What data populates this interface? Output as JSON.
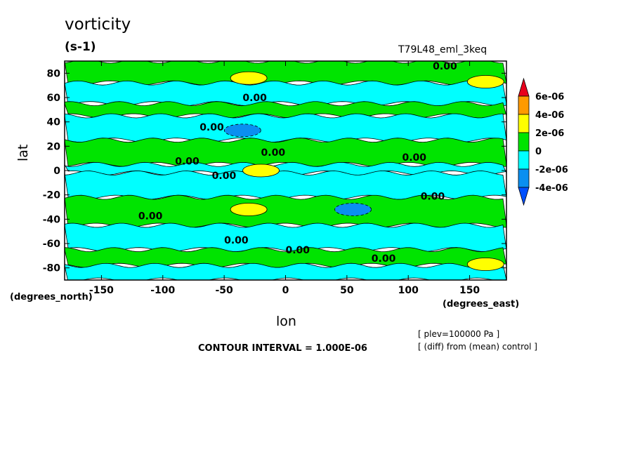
{
  "chart_data": {
    "type": "heatmap",
    "title": "vorticity",
    "units_label": "(s-1)",
    "run_label": "T79L48_eml_3keq",
    "xlabel": "lon",
    "ylabel": "lat",
    "x_units": "(degrees_east)",
    "y_units": "(degrees_north)",
    "xlim": [
      -180,
      180
    ],
    "ylim": [
      -90,
      90
    ],
    "x_ticks": [
      "-150",
      "-100",
      "-50",
      "0",
      "50",
      "100",
      "150"
    ],
    "y_ticks": [
      "80",
      "60",
      "40",
      "20",
      "0",
      "-20",
      "-40",
      "-60",
      "-80"
    ],
    "contour_interval_text": "CONTOUR INTERVAL = 1.000E-06",
    "plev_text": "[ plev=100000 Pa ]",
    "diff_text": "[ (diff) from (mean) control ]",
    "zero_labels": [
      "0.00",
      "0.00",
      "0.00",
      "0.00",
      "0.00",
      "0.00",
      "0.00",
      "0.00",
      "0.00",
      "0.00",
      "0.00",
      "0.00"
    ],
    "colorbar": {
      "labels": [
        "6e-06",
        "4e-06",
        "2e-06",
        "0",
        "-2e-06",
        "-4e-06"
      ],
      "colors": [
        "#e8001c",
        "#ff9a00",
        "#ffff00",
        "#00e400",
        "#00ffff",
        "#0a8ff0",
        "#0050ff"
      ]
    },
    "bands": [
      {
        "lat": [
          72,
          90
        ],
        "class": "positive",
        "value": 1e-06
      },
      {
        "lat": [
          55,
          72
        ],
        "class": "negative",
        "value": -1e-06
      },
      {
        "lat": [
          45,
          55
        ],
        "class": "positive",
        "value": 1e-06
      },
      {
        "lat": [
          25,
          45
        ],
        "class": "negative",
        "value": -1e-06
      },
      {
        "lat": [
          5,
          25
        ],
        "class": "positive",
        "value": 1e-06
      },
      {
        "lat": [
          -2,
          5
        ],
        "class": "negative",
        "value": -1e-06
      },
      {
        "lat": [
          -22,
          -2
        ],
        "class": "negative",
        "value": -1e-06
      },
      {
        "lat": [
          -45,
          -22
        ],
        "class": "positive",
        "value": 1e-06
      },
      {
        "lat": [
          -65,
          -45
        ],
        "class": "negative",
        "value": -1e-06
      },
      {
        "lat": [
          -78,
          -65
        ],
        "class": "positive",
        "value": 1e-06
      },
      {
        "lat": [
          -90,
          -78
        ],
        "class": "negative",
        "value": -1e-06
      }
    ],
    "features": [
      {
        "lon": -35,
        "lat": 33,
        "value": -3e-06
      },
      {
        "lon": -20,
        "lat": 0,
        "value": 3e-06
      },
      {
        "lon": -30,
        "lat": -32,
        "value": 3e-06
      },
      {
        "lon": 55,
        "lat": -32,
        "value": -3e-06
      },
      {
        "lon": -30,
        "lat": 76,
        "value": 3e-06
      },
      {
        "lon": 163,
        "lat": -77,
        "value": 3e-06
      },
      {
        "lon": 163,
        "lat": 73,
        "value": 3e-06
      }
    ]
  }
}
